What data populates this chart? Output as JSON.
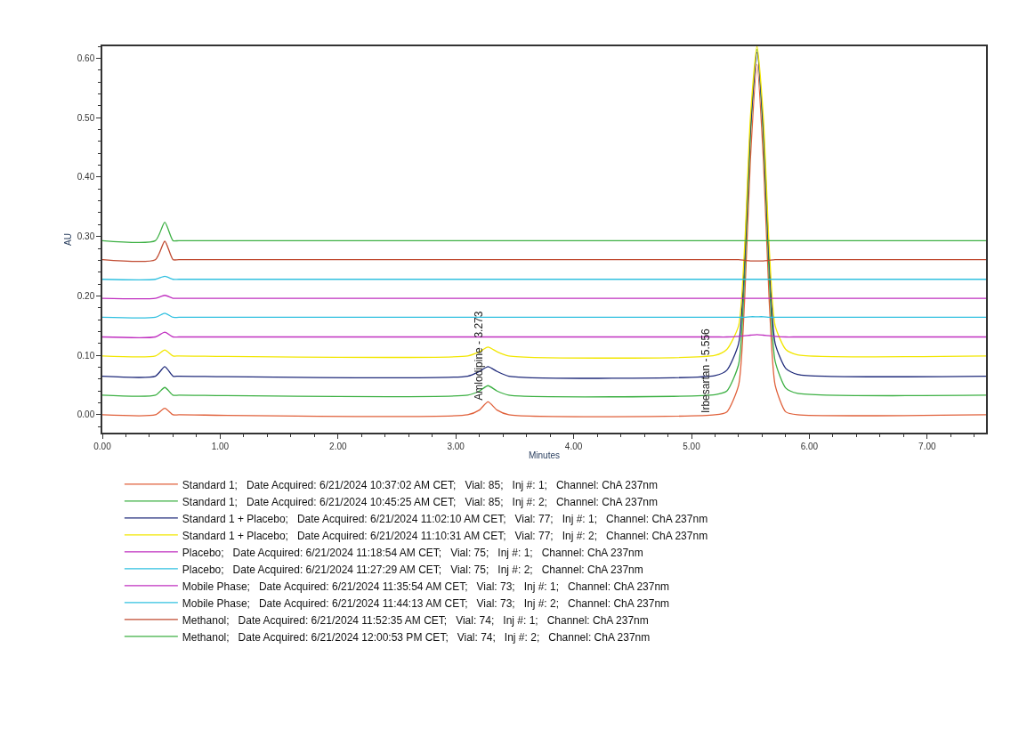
{
  "chart_data": {
    "type": "line",
    "xlabel": "Minutes",
    "ylabel": "AU",
    "x": [
      0,
      0.45,
      0.53,
      0.6,
      0.65,
      3.1,
      3.2,
      3.273,
      3.35,
      3.45,
      5.2,
      5.3,
      5.4,
      5.45,
      5.5,
      5.556,
      5.61,
      5.66,
      5.71,
      5.8,
      5.9,
      7.5
    ],
    "xlim": [
      0,
      7.5
    ],
    "xticks": [
      {
        "value": 0,
        "label": "0.00"
      },
      {
        "value": 1,
        "label": "1.00"
      },
      {
        "value": 2,
        "label": "2.00"
      },
      {
        "value": 3,
        "label": "3.00"
      },
      {
        "value": 4,
        "label": "4.00"
      },
      {
        "value": 5,
        "label": "5.00"
      },
      {
        "value": 6,
        "label": "6.00"
      },
      {
        "value": 7,
        "label": "7.00"
      }
    ],
    "ylim": [
      -0.03,
      0.62
    ],
    "yticks": [
      {
        "value": 0,
        "label": "0.00"
      },
      {
        "value": 0.1,
        "label": "0.10"
      },
      {
        "value": 0.2,
        "label": "0.20"
      },
      {
        "value": 0.3,
        "label": "0.30"
      },
      {
        "value": 0.4,
        "label": "0.40"
      },
      {
        "value": 0.5,
        "label": "0.50"
      },
      {
        "value": 0.6,
        "label": "0.60"
      }
    ],
    "legend": "bottom",
    "marker": "none",
    "line_style": "solid",
    "annotations": [
      {
        "text": "Amlodipine - 3.273",
        "x": 3.273,
        "y": 0.022
      },
      {
        "text": "Irbesartan - 5.556",
        "x": 5.2,
        "y": 0
      }
    ],
    "series": [
      {
        "name": "Standard 1;   Date Acquired: 6/21/2024 10:37:02 AM CET;   Vial: 85;   Inj #: 1;   Channel: ChA 237nm",
        "color": "#e0603a",
        "values": [
          0,
          0,
          0.011,
          0,
          0,
          0,
          0.008,
          0.022,
          0.008,
          0,
          0,
          0.005,
          0.05,
          0.19,
          0.43,
          0.59,
          0.43,
          0.19,
          0.05,
          0.005,
          0,
          0
        ]
      },
      {
        "name": "Standard 1;   Date Acquired: 6/21/2024 10:45:25 AM CET;   Vial: 85;   Inj #: 2;   Channel: ChA 237nm",
        "color": "#3cb043",
        "values": [
          0.033,
          0.033,
          0.046,
          0.033,
          0.033,
          0.033,
          0.04,
          0.049,
          0.04,
          0.033,
          0.034,
          0.04,
          0.085,
          0.23,
          0.47,
          0.615,
          0.47,
          0.23,
          0.09,
          0.045,
          0.036,
          0.033
        ]
      },
      {
        "name": "Standard 1 + Placebo;   Date Acquired: 6/21/2024 11:02:10 AM CET;   Vial: 77;   Inj #: 1;   Channel: ChA 237nm",
        "color": "#1f2a7a",
        "values": [
          0.065,
          0.065,
          0.081,
          0.065,
          0.065,
          0.065,
          0.073,
          0.081,
          0.073,
          0.065,
          0.066,
          0.075,
          0.12,
          0.26,
          0.48,
          0.61,
          0.48,
          0.26,
          0.12,
          0.078,
          0.068,
          0.065
        ]
      },
      {
        "name": "Standard 1 + Placebo;   Date Acquired: 6/21/2024 11:10:31 AM CET;   Vial: 77;   Inj #: 2;   Channel: ChA 237nm",
        "color": "#f2e600",
        "values": [
          0.099,
          0.099,
          0.109,
          0.099,
          0.099,
          0.099,
          0.106,
          0.114,
          0.106,
          0.099,
          0.1,
          0.11,
          0.15,
          0.28,
          0.5,
          0.62,
          0.5,
          0.28,
          0.15,
          0.11,
          0.101,
          0.099
        ]
      },
      {
        "name": "Placebo;   Date Acquired: 6/21/2024 11:18:54 AM CET;   Vial: 75;   Inj #: 1;   Channel: ChA 237nm",
        "color": "#c030c0",
        "values": [
          0.131,
          0.131,
          0.139,
          0.131,
          0.131,
          0.131,
          0.131,
          0.131,
          0.131,
          0.131,
          0.131,
          0.131,
          0.132,
          0.133,
          0.134,
          0.135,
          0.134,
          0.133,
          0.132,
          0.131,
          0.131,
          0.131
        ]
      },
      {
        "name": "Placebo;   Date Acquired: 6/21/2024 11:27:29 AM CET;   Vial: 75;   Inj #: 2;   Channel: ChA 237nm",
        "color": "#30c0e0",
        "values": [
          0.164,
          0.164,
          0.171,
          0.164,
          0.164,
          0.164,
          0.164,
          0.164,
          0.164,
          0.164,
          0.164,
          0.164,
          0.164,
          0.164,
          0.165,
          0.165,
          0.165,
          0.164,
          0.164,
          0.164,
          0.164,
          0.164
        ]
      },
      {
        "name": "Mobile Phase;   Date Acquired: 6/21/2024 11:35:54 AM CET;   Vial: 73;   Inj #: 1;   Channel: ChA 237nm",
        "color": "#c030c0",
        "values": [
          0.196,
          0.196,
          0.201,
          0.196,
          0.196,
          0.196,
          0.196,
          0.196,
          0.196,
          0.196,
          0.196,
          0.196,
          0.196,
          0.196,
          0.196,
          0.196,
          0.196,
          0.196,
          0.196,
          0.196,
          0.196,
          0.196
        ]
      },
      {
        "name": "Mobile Phase;   Date Acquired: 6/21/2024 11:44:13 AM CET;   Vial: 73;   Inj #: 2;   Channel: ChA 237nm",
        "color": "#30c0e0",
        "values": [
          0.228,
          0.228,
          0.233,
          0.228,
          0.228,
          0.228,
          0.228,
          0.228,
          0.228,
          0.228,
          0.228,
          0.228,
          0.228,
          0.228,
          0.228,
          0.228,
          0.228,
          0.228,
          0.228,
          0.228,
          0.228,
          0.228
        ]
      },
      {
        "name": "Methanol;   Date Acquired: 6/21/2024 11:52:35 AM CET;   Vial: 74;   Inj #: 1;   Channel: ChA 237nm",
        "color": "#c04a30",
        "values": [
          0.261,
          0.261,
          0.292,
          0.261,
          0.261,
          0.261,
          0.261,
          0.261,
          0.261,
          0.261,
          0.261,
          0.261,
          0.261,
          0.26,
          0.259,
          0.259,
          0.259,
          0.26,
          0.261,
          0.261,
          0.261,
          0.261
        ]
      },
      {
        "name": "Methanol;   Date Acquired: 6/21/2024 12:00:53 PM CET;   Vial: 74;   Inj #: 2;   Channel: ChA 237nm",
        "color": "#3cb043",
        "values": [
          0.293,
          0.293,
          0.324,
          0.293,
          0.293,
          0.293,
          0.293,
          0.293,
          0.293,
          0.293,
          0.293,
          0.293,
          0.293,
          0.293,
          0.293,
          0.293,
          0.293,
          0.293,
          0.293,
          0.293,
          0.293,
          0.293
        ]
      }
    ]
  }
}
